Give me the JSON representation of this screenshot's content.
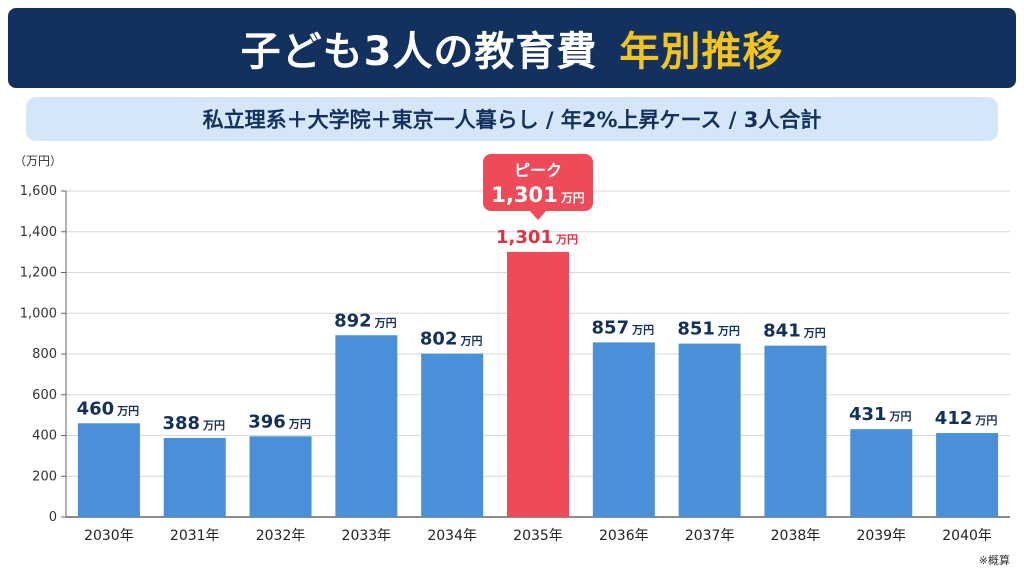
{
  "header": {
    "title_main": "子ども3人の教育費",
    "title_accent": "年別推移",
    "subtitle": "私立理系＋大学院＋東京一人暮らし / 年2%上昇ケース / 3人合計"
  },
  "unit_label": "（万円）",
  "footnote": "※概算",
  "callout": {
    "label": "ピーク",
    "value": "1,301",
    "unit": "万円"
  },
  "colors": {
    "title_bg": "#13315e",
    "accent": "#f6c418",
    "bar": "#4a90d9",
    "peak_bar": "#ef4a57",
    "peak_text": "#e0313f"
  },
  "chart_data": {
    "type": "bar",
    "title": "子ども3人の教育費 年別推移",
    "subtitle": "私立理系＋大学院＋東京一人暮らし / 年2%上昇ケース / 3人合計",
    "ylabel": "（万円）",
    "ylim": [
      0,
      1600
    ],
    "yticks": [
      0,
      200,
      400,
      600,
      800,
      1000,
      1200,
      1400,
      1600
    ],
    "ytick_labels": [
      "0",
      "200",
      "400",
      "600",
      "800",
      "1,000",
      "1,200",
      "1,400",
      "1,600"
    ],
    "grid": true,
    "categories": [
      "2030年",
      "2031年",
      "2032年",
      "2033年",
      "2034年",
      "2035年",
      "2036年",
      "2037年",
      "2038年",
      "2039年",
      "2040年"
    ],
    "values": [
      460,
      388,
      396,
      892,
      802,
      1301,
      857,
      851,
      841,
      431,
      412
    ],
    "value_labels": [
      "460",
      "388",
      "396",
      "892",
      "802",
      "1,301",
      "857",
      "851",
      "841",
      "431",
      "412"
    ],
    "value_unit": "万円",
    "highlight_index": 5
  }
}
